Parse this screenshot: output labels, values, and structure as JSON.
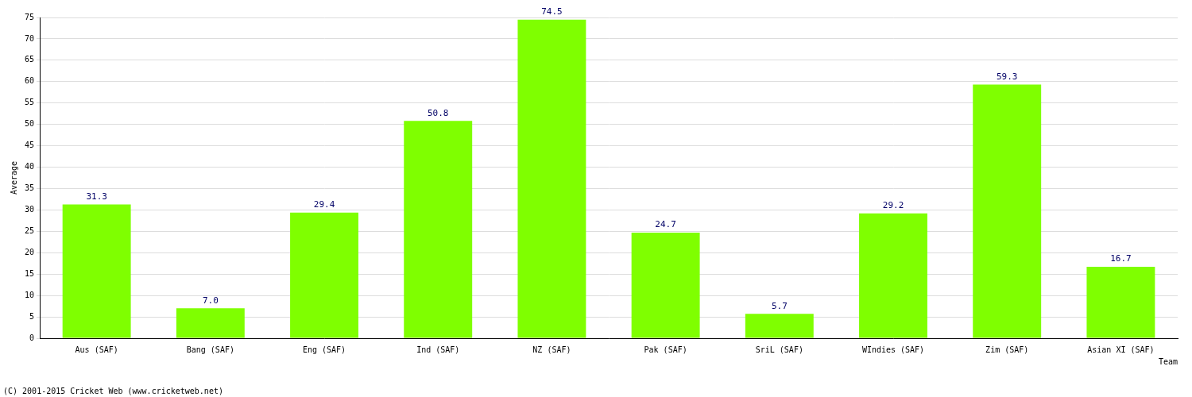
{
  "chart_data": {
    "type": "bar",
    "x_label": "Team",
    "y_label": "Average",
    "annotations": [
      "(C) 2001-2015 Cricket Web (www.cricketweb.net)"
    ],
    "categories": [
      "Aus (SAF)",
      "Bang (SAF)",
      "Eng (SAF)",
      "Ind (SAF)",
      "NZ (SAF)",
      "Pak (SAF)",
      "SriL (SAF)",
      "WIndies (SAF)",
      "Zim (SAF)",
      "Asian XI (SAF)"
    ],
    "values": [
      31.3,
      7.0,
      29.4,
      50.8,
      74.5,
      24.7,
      5.7,
      29.2,
      59.3,
      16.7
    ],
    "value_labels": [
      "31.3",
      "7.0",
      "29.4",
      "50.8",
      "74.5",
      "24.7",
      "5.7",
      "29.2",
      "59.3",
      "16.7"
    ],
    "color": "#7fff00",
    "ylim": [
      0,
      75
    ],
    "yticks": [
      0,
      5,
      10,
      15,
      20,
      25,
      30,
      35,
      40,
      45,
      50,
      55,
      60,
      65,
      70,
      75
    ],
    "grid": true,
    "data_labels": true
  }
}
